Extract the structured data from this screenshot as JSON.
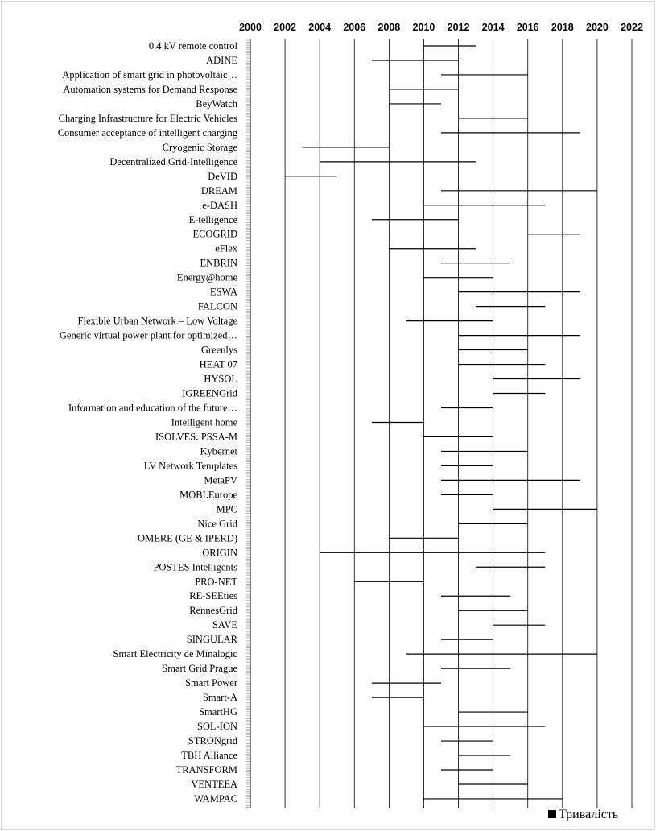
{
  "chart_data": {
    "type": "bar",
    "orientation": "horizontal-gantt",
    "title": "",
    "xlabel": "",
    "ylabel": "",
    "xlim": [
      2000,
      2022
    ],
    "x_ticks": [
      "2000",
      "2002",
      "2004",
      "2006",
      "2008",
      "2010",
      "2012",
      "2014",
      "2016",
      "2018",
      "2020",
      "2022"
    ],
    "x_axis_position": "top",
    "grid": "vertical major gridlines",
    "legend": {
      "position": "bottom-right",
      "entries": [
        "Тривалість"
      ]
    },
    "series": [
      {
        "name": "Тривалість",
        "color": "#000000"
      }
    ],
    "categories": [
      "0.4 kV remote control",
      "ADINE",
      "Application of smart grid in photovoltaic…",
      "Automation systems for Demand Response",
      "BeyWatch",
      "Charging Infrastructure for Electric Vehicles",
      "Consumer acceptance of intelligent charging",
      "Cryogenic Storage",
      "Decentralized Grid-Intelligence",
      "DeVID",
      "DREAM",
      "e-DASH",
      "E-telligence",
      "ECOGRID",
      "eFlex",
      "ENBRIN",
      "Energy@home",
      "ESWA",
      "FALCON",
      "Flexible Urban Network – Low Voltage",
      "Generic virtual power plant for optimized…",
      "Greenlys",
      "HEAT 07",
      "HYSOL",
      "IGREENGrid",
      "Information and education of the future…",
      "Intelligent home",
      "ISOLVES: PSSA-M",
      "Kybernet",
      "LV Network Templates",
      "MetaPV",
      "MOBI.Europe",
      "MPC",
      "Nice Grid",
      "OMERE (GE & IPERD)",
      "ORIGIN",
      "POSTES Intelligents",
      "PRO-NET",
      "RE-SEEties",
      "RennesGrid",
      "SAVE",
      "SINGULAR",
      "Smart Electricity de Minalogic",
      "Smart Grid Prague",
      "Smart Power",
      "Smart-A",
      "SmartHG",
      "SOL-ION",
      "STRONgrid",
      "TBH Alliance",
      "TRANSFORM",
      "VENTEEA",
      "WAMPAC"
    ],
    "ranges": [
      [
        2010,
        2013
      ],
      [
        2007,
        2012
      ],
      [
        2011,
        2016
      ],
      [
        2008,
        2012
      ],
      [
        2008,
        2011
      ],
      [
        2012,
        2016
      ],
      [
        2011,
        2019
      ],
      [
        2003,
        2008
      ],
      [
        2004,
        2013
      ],
      [
        2002,
        2005
      ],
      [
        2011,
        2020
      ],
      [
        2010,
        2017
      ],
      [
        2007,
        2012
      ],
      [
        2016,
        2019
      ],
      [
        2008,
        2013
      ],
      [
        2011,
        2015
      ],
      [
        2010,
        2014
      ],
      [
        2012,
        2019
      ],
      [
        2013,
        2017
      ],
      [
        2009,
        2014
      ],
      [
        2012,
        2019
      ],
      [
        2012,
        2016
      ],
      [
        2012,
        2017
      ],
      [
        2014,
        2019
      ],
      [
        2014,
        2017
      ],
      [
        2011,
        2014
      ],
      [
        2007,
        2010
      ],
      [
        2010,
        2014
      ],
      [
        2011,
        2016
      ],
      [
        2011,
        2014
      ],
      [
        2011,
        2019
      ],
      [
        2011,
        2014
      ],
      [
        2014,
        2020
      ],
      [
        2012,
        2016
      ],
      [
        2008,
        2012
      ],
      [
        2004,
        2017
      ],
      [
        2013,
        2017
      ],
      [
        2006,
        2010
      ],
      [
        2011,
        2015
      ],
      [
        2012,
        2016
      ],
      [
        2014,
        2017
      ],
      [
        2011,
        2014
      ],
      [
        2009,
        2020
      ],
      [
        2011,
        2015
      ],
      [
        2007,
        2011
      ],
      [
        2007,
        2010
      ],
      [
        2012,
        2016
      ],
      [
        2010,
        2017
      ],
      [
        2011,
        2014
      ],
      [
        2012,
        2015
      ],
      [
        2011,
        2014
      ],
      [
        2012,
        2016
      ],
      [
        2010,
        2018
      ]
    ]
  }
}
